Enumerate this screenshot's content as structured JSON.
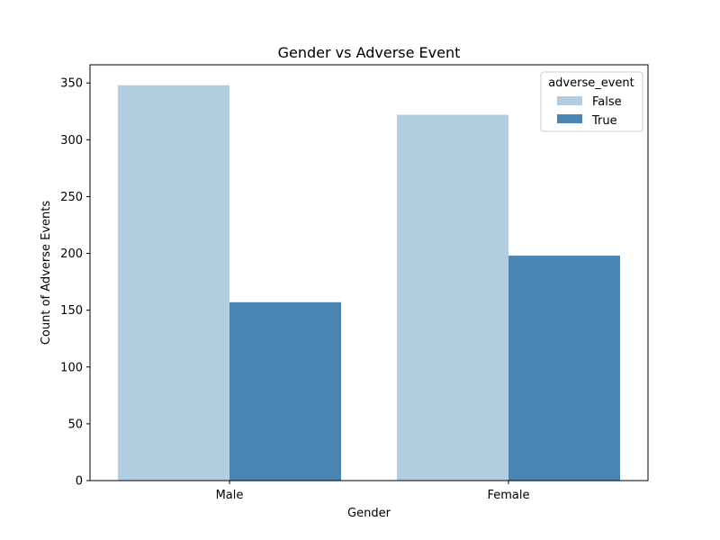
{
  "chart_data": {
    "type": "bar",
    "title": "Gender vs Adverse Event",
    "xlabel": "Gender",
    "ylabel": "Count of Adverse Events",
    "categories": [
      "Male",
      "Female"
    ],
    "series": [
      {
        "name": "False",
        "values": [
          348,
          322
        ],
        "color": "#b3cde0"
      },
      {
        "name": "True",
        "values": [
          157,
          198
        ],
        "color": "#4a85b3"
      }
    ],
    "ylim": [
      0,
      366
    ],
    "yticks": [
      0,
      50,
      100,
      150,
      200,
      250,
      300,
      350
    ],
    "legend": {
      "title": "adverse_event",
      "placement": "top-right"
    },
    "grid": false
  }
}
